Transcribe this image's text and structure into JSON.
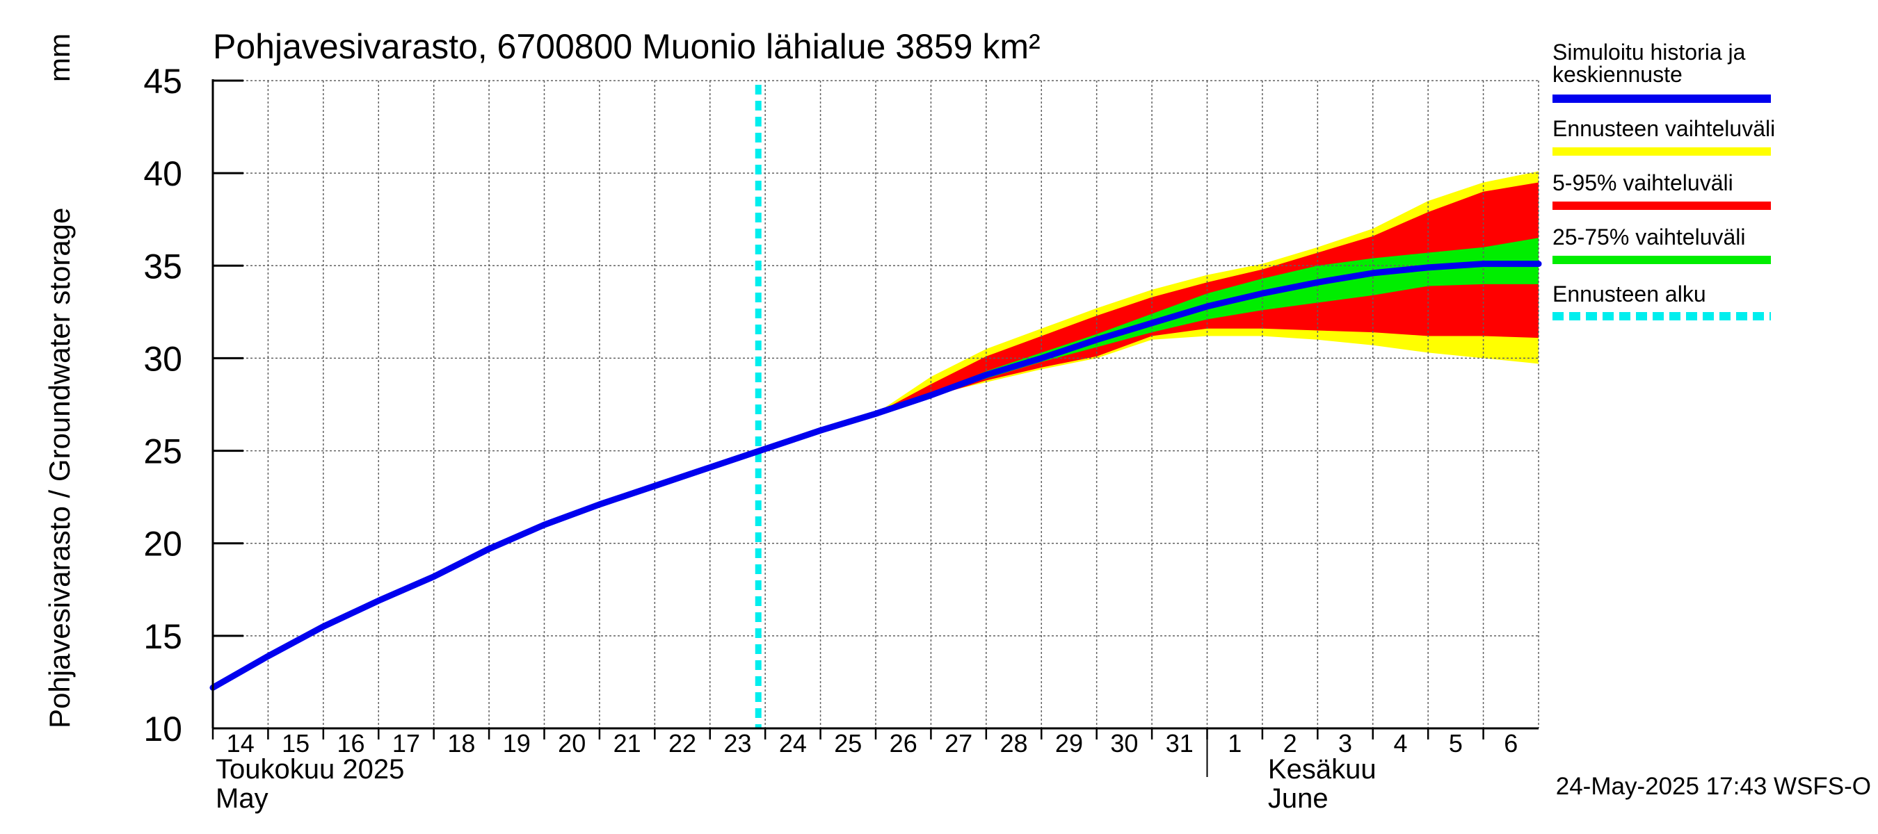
{
  "chart_data": {
    "type": "area",
    "title": "Pohjavesivarasto, 6700800 Muonio lähialue 3859 km²",
    "ylabel": "Pohjavesivarasto / Groundwater storage",
    "yunit": "mm",
    "ylim": [
      10,
      45
    ],
    "yticks": [
      10,
      15,
      20,
      25,
      30,
      35,
      40,
      45
    ],
    "x_start": "2025-05-14",
    "x_end": "2025-06-07",
    "grid": true,
    "legend_position": "right",
    "x_tick_labels": [
      "14",
      "15",
      "16",
      "17",
      "18",
      "19",
      "20",
      "21",
      "22",
      "23",
      "24",
      "25",
      "26",
      "27",
      "28",
      "29",
      "30",
      "31",
      "1",
      "2",
      "3",
      "4",
      "5",
      "6"
    ],
    "month_labels": [
      {
        "fi": "Toukokuu  2025",
        "en": "May",
        "start": "2025-05-14"
      },
      {
        "fi": "Kesäkuu",
        "en": "June",
        "start": "2025-06-01"
      }
    ],
    "forecast_start": "2025-05-23 21:00",
    "footer": "24-May-2025 17:43 WSFS-O",
    "colors": {
      "history": "#0000ee",
      "range_full": "#ffff00",
      "range_5_95": "#ff0000",
      "range_25_75": "#00ee00",
      "forecast_start": "#00eeee",
      "grid": "#606060"
    },
    "legend": [
      {
        "label_lines": [
          "Simuloitu historia ja",
          "keskiennuste"
        ],
        "key": "history",
        "dashed": false
      },
      {
        "label_lines": [
          "Ennusteen vaihteluväli"
        ],
        "key": "range_full",
        "dashed": false
      },
      {
        "label_lines": [
          "5-95% vaihteluväli"
        ],
        "key": "range_5_95",
        "dashed": false
      },
      {
        "label_lines": [
          "25-75% vaihteluväli"
        ],
        "key": "range_25_75",
        "dashed": false
      },
      {
        "label_lines": [
          "Ennusteen alku"
        ],
        "key": "forecast_start",
        "dashed": true
      }
    ],
    "series": [
      {
        "name": "Simuloitu historia ja keskiennuste",
        "x": [
          "2025-05-14",
          "2025-05-15",
          "2025-05-16",
          "2025-05-17",
          "2025-05-18",
          "2025-05-19",
          "2025-05-20",
          "2025-05-21",
          "2025-05-22",
          "2025-05-23",
          "2025-05-24",
          "2025-05-25",
          "2025-05-26",
          "2025-05-27",
          "2025-05-28",
          "2025-05-29",
          "2025-05-30",
          "2025-05-31",
          "2025-06-01",
          "2025-06-02",
          "2025-06-03",
          "2025-06-04",
          "2025-06-05",
          "2025-06-06",
          "2025-06-07"
        ],
        "values": [
          12.2,
          13.9,
          15.5,
          16.9,
          18.2,
          19.7,
          21.0,
          22.1,
          23.1,
          24.1,
          25.1,
          26.1,
          27.0,
          28.0,
          29.1,
          30.0,
          31.0,
          31.9,
          32.8,
          33.5,
          34.1,
          34.6,
          34.9,
          35.1,
          35.1
        ]
      }
    ],
    "bands": [
      {
        "key": "range_full",
        "x": [
          "2025-05-26",
          "2025-05-27",
          "2025-05-28",
          "2025-05-29",
          "2025-05-30",
          "2025-05-31",
          "2025-06-01",
          "2025-06-02",
          "2025-06-03",
          "2025-06-04",
          "2025-06-05",
          "2025-06-06",
          "2025-06-07"
        ],
        "low": [
          27.0,
          28.0,
          28.7,
          29.4,
          30.0,
          31.0,
          31.2,
          31.2,
          31.0,
          30.7,
          30.3,
          30.0,
          29.7
        ],
        "high": [
          27.0,
          29.0,
          30.5,
          31.6,
          32.7,
          33.7,
          34.5,
          35.1,
          36.0,
          37.0,
          38.5,
          39.5,
          40.1
        ]
      },
      {
        "key": "range_5_95",
        "x": [
          "2025-05-26",
          "2025-05-27",
          "2025-05-28",
          "2025-05-29",
          "2025-05-30",
          "2025-05-31",
          "2025-06-01",
          "2025-06-02",
          "2025-06-03",
          "2025-06-04",
          "2025-06-05",
          "2025-06-06",
          "2025-06-07"
        ],
        "low": [
          27.0,
          27.9,
          28.8,
          29.5,
          30.1,
          31.2,
          31.6,
          31.6,
          31.5,
          31.4,
          31.2,
          31.2,
          31.1
        ],
        "high": [
          27.0,
          28.6,
          30.1,
          31.2,
          32.3,
          33.3,
          34.1,
          34.8,
          35.7,
          36.6,
          37.9,
          39.0,
          39.5
        ]
      },
      {
        "key": "range_25_75",
        "x": [
          "2025-05-26",
          "2025-05-27",
          "2025-05-28",
          "2025-05-29",
          "2025-05-30",
          "2025-05-31",
          "2025-06-01",
          "2025-06-02",
          "2025-06-03",
          "2025-06-04",
          "2025-06-05",
          "2025-06-06",
          "2025-06-07"
        ],
        "low": [
          27.0,
          28.0,
          28.9,
          29.8,
          30.6,
          31.4,
          32.1,
          32.6,
          33.0,
          33.4,
          33.9,
          34.0,
          34.0
        ],
        "high": [
          27.0,
          28.1,
          29.3,
          30.3,
          31.3,
          32.4,
          33.5,
          34.3,
          35.0,
          35.4,
          35.7,
          36.0,
          36.5
        ]
      }
    ]
  }
}
